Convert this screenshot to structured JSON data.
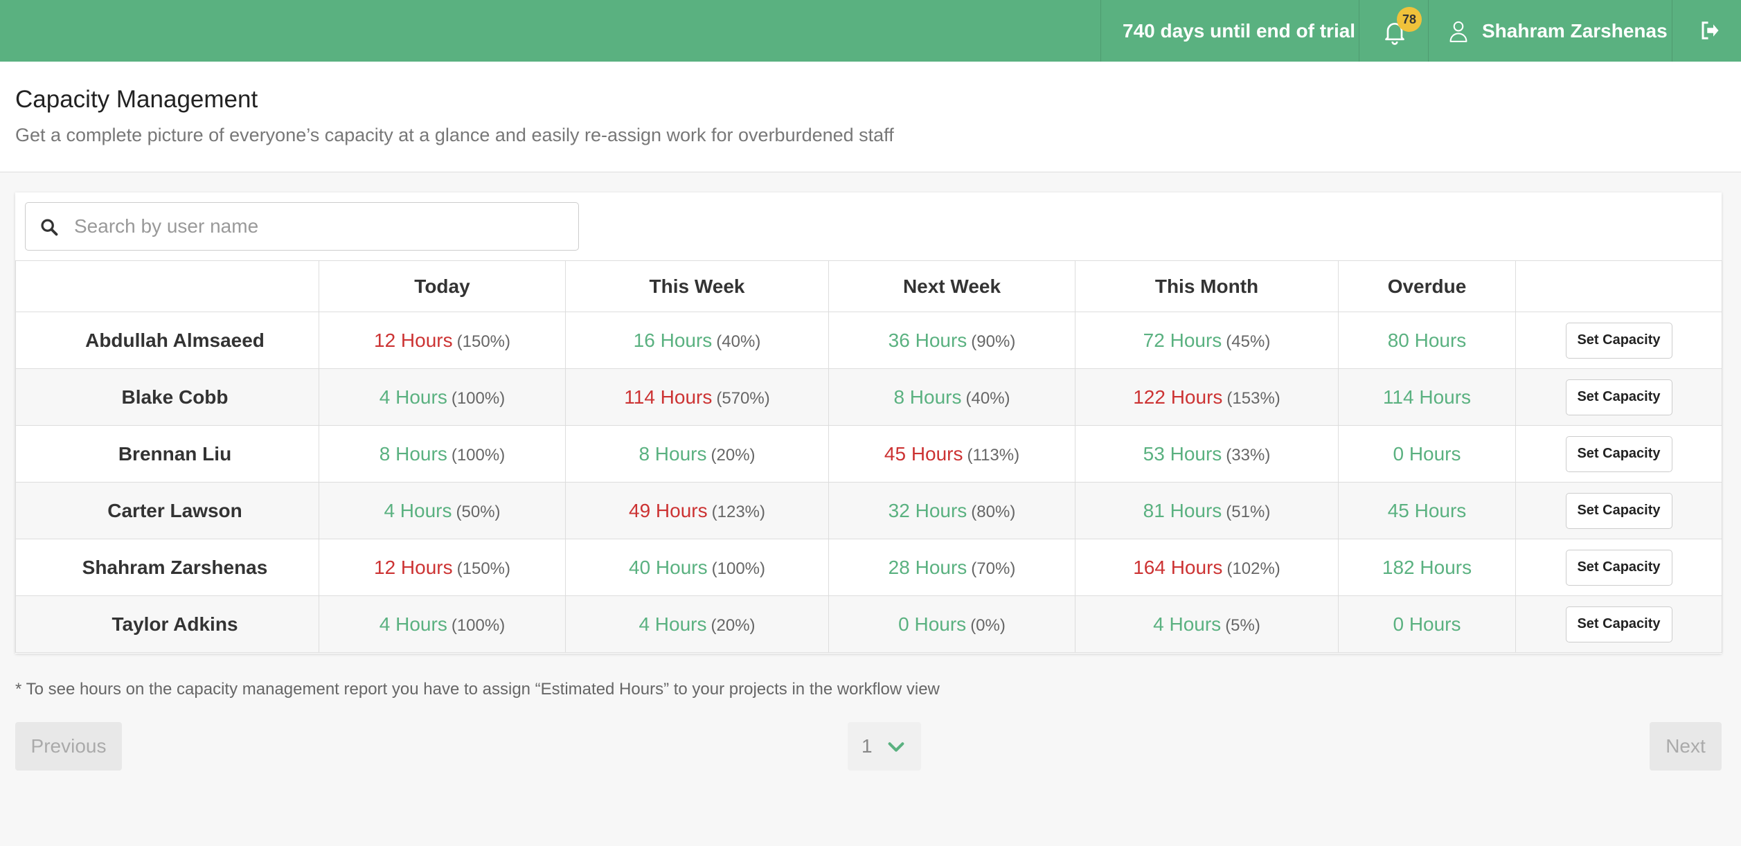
{
  "topbar": {
    "trial_text": "740 days until end of trial",
    "notification_count": "78",
    "user_name": "Shahram Zarshenas",
    "bell_icon": "bell-icon",
    "user_icon": "user-icon",
    "logout_icon": "sign-out-icon"
  },
  "header": {
    "title": "Capacity Management",
    "subtitle": "Get a complete picture of everyone’s capacity at a glance and easily re-assign work for overburdened staff"
  },
  "search": {
    "placeholder": "Search by user name",
    "value": ""
  },
  "table": {
    "columns": [
      "",
      "Today",
      "This Week",
      "Next Week",
      "This Month",
      "Overdue",
      ""
    ],
    "action_label": "Set Capacity",
    "rows": [
      {
        "name": "Abdullah Almsaeed",
        "today": {
          "hours": "12 Hours",
          "pct": "(150%)",
          "over": true
        },
        "week": {
          "hours": "16 Hours",
          "pct": "(40%)",
          "over": false
        },
        "next_week": {
          "hours": "36 Hours",
          "pct": "(90%)",
          "over": false
        },
        "month": {
          "hours": "72 Hours",
          "pct": "(45%)",
          "over": false
        },
        "overdue": "80 Hours"
      },
      {
        "name": "Blake Cobb",
        "today": {
          "hours": "4 Hours",
          "pct": "(100%)",
          "over": false
        },
        "week": {
          "hours": "114 Hours",
          "pct": "(570%)",
          "over": true
        },
        "next_week": {
          "hours": "8 Hours",
          "pct": "(40%)",
          "over": false
        },
        "month": {
          "hours": "122 Hours",
          "pct": "(153%)",
          "over": true
        },
        "overdue": "114 Hours"
      },
      {
        "name": "Brennan Liu",
        "today": {
          "hours": "8 Hours",
          "pct": "(100%)",
          "over": false
        },
        "week": {
          "hours": "8 Hours",
          "pct": "(20%)",
          "over": false
        },
        "next_week": {
          "hours": "45 Hours",
          "pct": "(113%)",
          "over": true
        },
        "month": {
          "hours": "53 Hours",
          "pct": "(33%)",
          "over": false
        },
        "overdue": "0 Hours"
      },
      {
        "name": "Carter Lawson",
        "today": {
          "hours": "4 Hours",
          "pct": "(50%)",
          "over": false
        },
        "week": {
          "hours": "49 Hours",
          "pct": "(123%)",
          "over": true
        },
        "next_week": {
          "hours": "32 Hours",
          "pct": "(80%)",
          "over": false
        },
        "month": {
          "hours": "81 Hours",
          "pct": "(51%)",
          "over": false
        },
        "overdue": "45 Hours"
      },
      {
        "name": "Shahram Zarshenas",
        "today": {
          "hours": "12 Hours",
          "pct": "(150%)",
          "over": true
        },
        "week": {
          "hours": "40 Hours",
          "pct": "(100%)",
          "over": false
        },
        "next_week": {
          "hours": "28 Hours",
          "pct": "(70%)",
          "over": false
        },
        "month": {
          "hours": "164 Hours",
          "pct": "(102%)",
          "over": true
        },
        "overdue": "182 Hours"
      },
      {
        "name": "Taylor Adkins",
        "today": {
          "hours": "4 Hours",
          "pct": "(100%)",
          "over": false
        },
        "week": {
          "hours": "4 Hours",
          "pct": "(20%)",
          "over": false
        },
        "next_week": {
          "hours": "0 Hours",
          "pct": "(0%)",
          "over": false
        },
        "month": {
          "hours": "4 Hours",
          "pct": "(5%)",
          "over": false
        },
        "overdue": "0 Hours"
      }
    ]
  },
  "footnote": "* To see hours on the capacity management report you have to assign “Estimated Hours” to your projects in the workflow view",
  "pagination": {
    "previous_label": "Previous",
    "next_label": "Next",
    "current_page": "1"
  },
  "colors": {
    "brand": "#5ab180",
    "over_capacity": "#cc3333",
    "badge": "#f0c23b"
  }
}
